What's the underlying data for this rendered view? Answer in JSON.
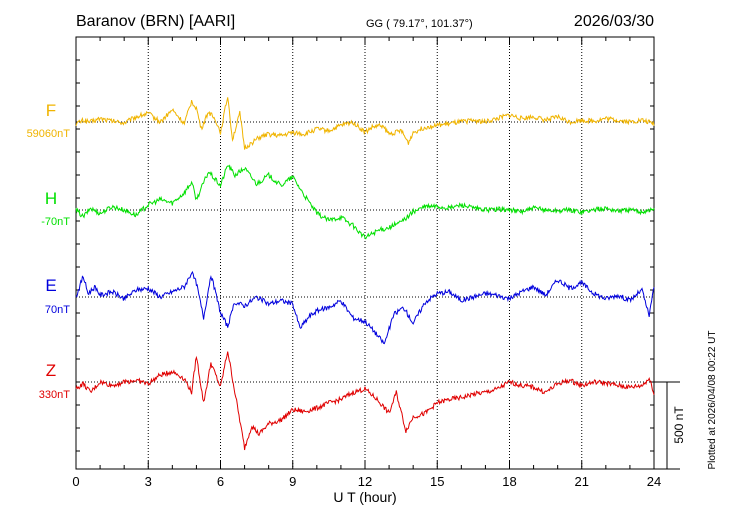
{
  "header": {
    "station": "Baranov (BRN)  [AARI]",
    "coords": "GG ( 79.17°, 101.37°)",
    "date": "2026/03/30"
  },
  "plotted_note": "Plotted at 2026/04/08 00:22 UT",
  "scale_bar_label": "500 nT",
  "chart_data": {
    "type": "line",
    "xlabel": "U T (hour)",
    "xlim": [
      0,
      24
    ],
    "x_ticks": [
      "0",
      "3",
      "6",
      "9",
      "12",
      "15",
      "18",
      "21",
      "24"
    ],
    "scale_bar_nT": 500,
    "series": [
      {
        "name": "F",
        "baseline_label": "59060nT",
        "color": "#f0b400",
        "x": [
          0,
          0.3,
          0.6,
          1,
          1.5,
          2,
          2.5,
          3,
          3.5,
          4,
          4.5,
          4.8,
          5,
          5.2,
          5.5,
          5.8,
          6,
          6.3,
          6.5,
          6.8,
          7,
          7.3,
          7.6,
          8,
          8.5,
          9,
          9.5,
          10,
          10.5,
          11,
          11.5,
          12,
          12.3,
          12.7,
          13,
          13.5,
          13.8,
          14,
          14.5,
          15,
          15.5,
          16,
          16.5,
          17,
          17.5,
          18,
          18.5,
          19,
          19.5,
          20,
          20.5,
          21,
          21.5,
          22,
          22.5,
          23,
          23.5,
          24
        ],
        "values": [
          -10,
          10,
          0,
          20,
          5,
          -5,
          30,
          50,
          0,
          70,
          -10,
          120,
          80,
          -40,
          60,
          10,
          -60,
          150,
          -100,
          50,
          -150,
          -120,
          -90,
          -70,
          -80,
          -60,
          -70,
          -40,
          -50,
          -20,
          0,
          -60,
          -30,
          -20,
          -70,
          -50,
          -120,
          -60,
          -30,
          -20,
          -10,
          0,
          10,
          0,
          20,
          40,
          20,
          30,
          10,
          30,
          0,
          10,
          5,
          20,
          10,
          0,
          10,
          -10
        ]
      },
      {
        "name": "H",
        "baseline_label": "-70nT",
        "color": "#00e000",
        "x": [
          0,
          0.3,
          0.6,
          1,
          1.5,
          2,
          2.5,
          3,
          3.5,
          4,
          4.5,
          4.8,
          5,
          5.5,
          6,
          6.3,
          6.6,
          7,
          7.5,
          8,
          8.5,
          9,
          9.5,
          10,
          10.5,
          11,
          11.5,
          12,
          12.5,
          13,
          13.5,
          14,
          14.5,
          15,
          15.5,
          16,
          16.5,
          17,
          17.5,
          18,
          18.5,
          19,
          19.5,
          20,
          20.5,
          21,
          21.5,
          22,
          22.5,
          23,
          23.5,
          24
        ],
        "values": [
          0,
          -40,
          10,
          -20,
          20,
          0,
          -30,
          30,
          60,
          40,
          100,
          160,
          60,
          220,
          140,
          260,
          200,
          240,
          150,
          200,
          140,
          190,
          80,
          -20,
          -60,
          -40,
          -90,
          -160,
          -120,
          -100,
          -70,
          -10,
          20,
          20,
          10,
          30,
          10,
          0,
          5,
          0,
          -10,
          10,
          0,
          -5,
          0,
          -10,
          0,
          10,
          -5,
          0,
          -10,
          5
        ]
      },
      {
        "name": "E",
        "baseline_label": "70nT",
        "color": "#0000dd",
        "x": [
          0,
          0.3,
          0.5,
          0.8,
          1,
          1.5,
          2,
          2.5,
          3,
          3.5,
          4,
          4.5,
          4.8,
          5,
          5.3,
          5.6,
          6,
          6.3,
          6.6,
          7,
          7.5,
          8,
          8.5,
          9,
          9.3,
          9.7,
          10,
          10.5,
          11,
          11.5,
          12,
          12.4,
          12.8,
          13.2,
          13.6,
          14,
          14.5,
          15,
          15.5,
          16,
          16.5,
          17,
          17.5,
          18,
          18.5,
          19,
          19.5,
          20,
          20.5,
          21,
          21.5,
          22,
          22.5,
          23,
          23.5,
          23.8,
          24
        ],
        "values": [
          0,
          120,
          20,
          60,
          10,
          30,
          -10,
          40,
          50,
          0,
          30,
          60,
          140,
          80,
          -120,
          130,
          -90,
          -170,
          -30,
          -50,
          0,
          -40,
          -20,
          -40,
          -180,
          -110,
          -80,
          -60,
          -20,
          -120,
          -140,
          -200,
          -270,
          -100,
          -60,
          -150,
          -30,
          20,
          30,
          -20,
          0,
          20,
          10,
          -10,
          30,
          60,
          10,
          100,
          50,
          80,
          20,
          -10,
          10,
          -20,
          40,
          -110,
          60
        ]
      },
      {
        "name": "Z",
        "baseline_label": "330nT",
        "color": "#e00000",
        "x": [
          0,
          0.3,
          0.6,
          1,
          1.5,
          2,
          2.5,
          3,
          3.5,
          4,
          4.5,
          4.8,
          5,
          5.3,
          5.6,
          6,
          6.3,
          6.6,
          7,
          7.3,
          7.6,
          8,
          8.5,
          9,
          9.5,
          10,
          10.5,
          11,
          11.5,
          12,
          12.5,
          13,
          13.3,
          13.7,
          14,
          14.5,
          15,
          15.5,
          16,
          16.5,
          17,
          17.5,
          18,
          18.5,
          19,
          19.5,
          20,
          20.5,
          21,
          21.5,
          22,
          22.5,
          23,
          23.5,
          23.8,
          24
        ],
        "values": [
          -40,
          -10,
          -60,
          0,
          -20,
          0,
          10,
          -10,
          40,
          60,
          20,
          -60,
          150,
          -120,
          110,
          -30,
          180,
          -60,
          -380,
          -250,
          -300,
          -240,
          -220,
          -160,
          -170,
          -150,
          -120,
          -100,
          -60,
          -40,
          -100,
          -180,
          -60,
          -280,
          -200,
          -180,
          -120,
          -100,
          -90,
          -70,
          -60,
          -40,
          0,
          -20,
          -30,
          -60,
          -10,
          10,
          -20,
          0,
          -5,
          -20,
          -30,
          -20,
          20,
          -60
        ]
      }
    ]
  }
}
